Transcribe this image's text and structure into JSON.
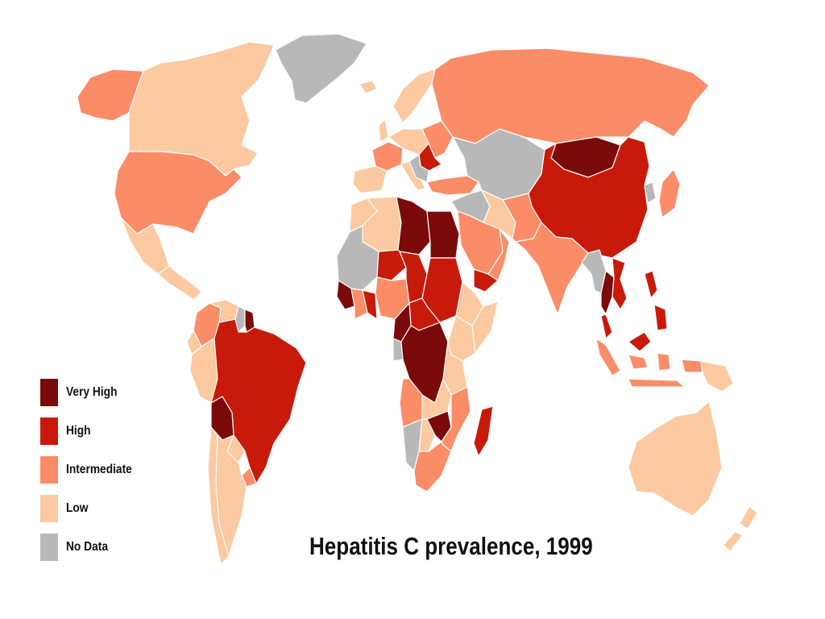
{
  "title": "Hepatitis C prevalence, 1999",
  "legend": [
    {
      "key": "very_high",
      "label": "Very High",
      "color": "#7b0a0a"
    },
    {
      "key": "high",
      "label": "High",
      "color": "#c81a0a"
    },
    {
      "key": "intermediate",
      "label": "Intermediate",
      "color": "#fb8c68"
    },
    {
      "key": "low",
      "label": "Low",
      "color": "#fcc9a0"
    },
    {
      "key": "no_data",
      "label": "No Data",
      "color": "#b8b8b8"
    }
  ],
  "regions": [
    {
      "name": "Alaska",
      "category": "intermediate"
    },
    {
      "name": "Canada",
      "category": "low"
    },
    {
      "name": "Greenland",
      "category": "no_data"
    },
    {
      "name": "United States",
      "category": "intermediate"
    },
    {
      "name": "Mexico",
      "category": "low"
    },
    {
      "name": "Central America",
      "category": "low"
    },
    {
      "name": "Colombia",
      "category": "intermediate"
    },
    {
      "name": "Venezuela",
      "category": "low"
    },
    {
      "name": "Guyana",
      "category": "no_data"
    },
    {
      "name": "Suriname",
      "category": "very_high"
    },
    {
      "name": "Ecuador",
      "category": "low"
    },
    {
      "name": "Peru",
      "category": "low"
    },
    {
      "name": "Brazil",
      "category": "high"
    },
    {
      "name": "Bolivia",
      "category": "very_high"
    },
    {
      "name": "Paraguay",
      "category": "low"
    },
    {
      "name": "Chile",
      "category": "low"
    },
    {
      "name": "Argentina",
      "category": "low"
    },
    {
      "name": "Uruguay",
      "category": "intermediate"
    },
    {
      "name": "Iceland",
      "category": "low"
    },
    {
      "name": "Scandinavia",
      "category": "low"
    },
    {
      "name": "United Kingdom",
      "category": "low"
    },
    {
      "name": "France",
      "category": "intermediate"
    },
    {
      "name": "Iberia",
      "category": "low"
    },
    {
      "name": "Central Europe",
      "category": "low"
    },
    {
      "name": "Italy",
      "category": "low"
    },
    {
      "name": "Eastern Europe",
      "category": "intermediate"
    },
    {
      "name": "Romania",
      "category": "high"
    },
    {
      "name": "Balkans",
      "category": "no_data"
    },
    {
      "name": "Turkey",
      "category": "intermediate"
    },
    {
      "name": "Russia",
      "category": "intermediate"
    },
    {
      "name": "Kazakhstan and Central Asia",
      "category": "no_data"
    },
    {
      "name": "Mongolia",
      "category": "very_high"
    },
    {
      "name": "China",
      "category": "high"
    },
    {
      "name": "Korea",
      "category": "no_data"
    },
    {
      "name": "Japan",
      "category": "intermediate"
    },
    {
      "name": "Middle East",
      "category": "no_data"
    },
    {
      "name": "Saudi Arabia",
      "category": "intermediate"
    },
    {
      "name": "Yemen",
      "category": "high"
    },
    {
      "name": "Oman",
      "category": "intermediate"
    },
    {
      "name": "Iran",
      "category": "low"
    },
    {
      "name": "Pakistan",
      "category": "intermediate"
    },
    {
      "name": "India",
      "category": "intermediate"
    },
    {
      "name": "Myanmar",
      "category": "no_data"
    },
    {
      "name": "Thailand",
      "category": "very_high"
    },
    {
      "name": "Vietnam",
      "category": "high"
    },
    {
      "name": "Malaysia",
      "category": "high"
    },
    {
      "name": "Indonesia",
      "category": "intermediate"
    },
    {
      "name": "Philippines",
      "category": "high"
    },
    {
      "name": "Papua New Guinea",
      "category": "low"
    },
    {
      "name": "Australia",
      "category": "low"
    },
    {
      "name": "New Zealand",
      "category": "low"
    },
    {
      "name": "Morocco",
      "category": "low"
    },
    {
      "name": "Algeria",
      "category": "low"
    },
    {
      "name": "Libya",
      "category": "very_high"
    },
    {
      "name": "Egypt",
      "category": "very_high"
    },
    {
      "name": "West Africa",
      "category": "no_data"
    },
    {
      "name": "Guinea",
      "category": "very_high"
    },
    {
      "name": "Cote d'Ivoire",
      "category": "intermediate"
    },
    {
      "name": "Ghana",
      "category": "high"
    },
    {
      "name": "Niger",
      "category": "high"
    },
    {
      "name": "Nigeria",
      "category": "intermediate"
    },
    {
      "name": "Chad",
      "category": "high"
    },
    {
      "name": "Sudan",
      "category": "high"
    },
    {
      "name": "Central African Republic",
      "category": "high"
    },
    {
      "name": "Cameroon",
      "category": "very_high"
    },
    {
      "name": "Gabon",
      "category": "no_data"
    },
    {
      "name": "DR Congo",
      "category": "very_high"
    },
    {
      "name": "Ethiopia",
      "category": "low"
    },
    {
      "name": "Somalia",
      "category": "low"
    },
    {
      "name": "Kenya",
      "category": "low"
    },
    {
      "name": "Tanzania",
      "category": "low"
    },
    {
      "name": "Angola",
      "category": "intermediate"
    },
    {
      "name": "Zambia",
      "category": "low"
    },
    {
      "name": "Namibia",
      "category": "no_data"
    },
    {
      "name": "Botswana",
      "category": "low"
    },
    {
      "name": "Zimbabwe",
      "category": "very_high"
    },
    {
      "name": "Mozambique",
      "category": "intermediate"
    },
    {
      "name": "South Africa",
      "category": "intermediate"
    },
    {
      "name": "Madagascar",
      "category": "high"
    }
  ]
}
